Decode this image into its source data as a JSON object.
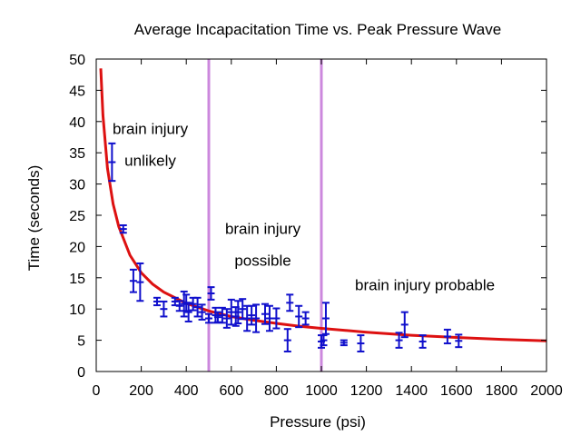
{
  "chart_data": {
    "type": "scatter",
    "title": "Average Incapacitation Time vs. Peak Pressure Wave",
    "xlabel": "Pressure (psi)",
    "ylabel": "Time (seconds)",
    "xlim": [
      0,
      2000
    ],
    "ylim": [
      0,
      50
    ],
    "xticks": [
      0,
      200,
      400,
      600,
      800,
      1000,
      1200,
      1400,
      1600,
      1800,
      2000
    ],
    "yticks": [
      0,
      5,
      10,
      15,
      20,
      25,
      30,
      35,
      40,
      45,
      50
    ],
    "grid": false,
    "legend": "none",
    "colors": {
      "points": "#1010cc",
      "fit": "#dd1111",
      "thresholds": "#cc88dd"
    },
    "thresholds": [
      500,
      1000
    ],
    "annotations": [
      {
        "lines": [
          "brain injury",
          "unlikely"
        ],
        "x": 240,
        "y": 38
      },
      {
        "lines": [
          "brain injury",
          "possible"
        ],
        "x": 740,
        "y": 22
      },
      {
        "lines": [
          "brain injury probable"
        ],
        "x": 1460,
        "y": 13
      }
    ],
    "fit": {
      "x": [
        20,
        30,
        50,
        75,
        100,
        150,
        200,
        250,
        300,
        400,
        500,
        600,
        700,
        800,
        900,
        1000,
        1200,
        1400,
        1600,
        1800,
        2000
      ],
      "y": [
        48.5,
        41.0,
        32.5,
        26.8,
        23.2,
        18.6,
        15.8,
        14.0,
        12.7,
        10.9,
        9.7,
        8.8,
        8.2,
        7.7,
        7.25,
        6.9,
        6.3,
        5.8,
        5.45,
        5.15,
        4.9
      ]
    },
    "series": [
      {
        "x": [
          70,
          120,
          165,
          195,
          270,
          300,
          350,
          370,
          390,
          400,
          410,
          430,
          450,
          470,
          500,
          510,
          530,
          540,
          560,
          580,
          600,
          620,
          630,
          650,
          670,
          690,
          710,
          750,
          770,
          800,
          850,
          860,
          900,
          930,
          1000,
          1010,
          1020,
          1100,
          1175,
          1345,
          1370,
          1450,
          1560,
          1610
        ],
        "y": [
          33.5,
          22.8,
          14.5,
          14.3,
          11.2,
          10.0,
          11.2,
          10.5,
          10.8,
          11.0,
          9.5,
          10.8,
          10.3,
          9.5,
          8.5,
          12.5,
          9.0,
          8.7,
          9.0,
          8.5,
          9.5,
          8.8,
          9.5,
          10.0,
          8.5,
          9.0,
          8.5,
          9.2,
          8.5,
          8.5,
          5.0,
          11.0,
          8.8,
          8.5,
          4.8,
          5.0,
          8.5,
          4.6,
          4.5,
          5.0,
          7.5,
          4.8,
          5.6,
          4.9
        ],
        "err": [
          3.0,
          0.6,
          1.8,
          3.0,
          0.6,
          1.2,
          0.6,
          0.8,
          2.0,
          1.3,
          1.5,
          1.0,
          1.5,
          1.2,
          0.7,
          1.0,
          1.2,
          0.8,
          1.2,
          1.5,
          2.0,
          1.5,
          1.8,
          1.6,
          2.0,
          1.5,
          2.2,
          1.6,
          2.0,
          1.6,
          1.8,
          1.3,
          1.7,
          1.0,
          1.0,
          0.8,
          2.5,
          0.4,
          1.3,
          1.2,
          2.0,
          1.0,
          1.1,
          1.0
        ]
      }
    ]
  }
}
